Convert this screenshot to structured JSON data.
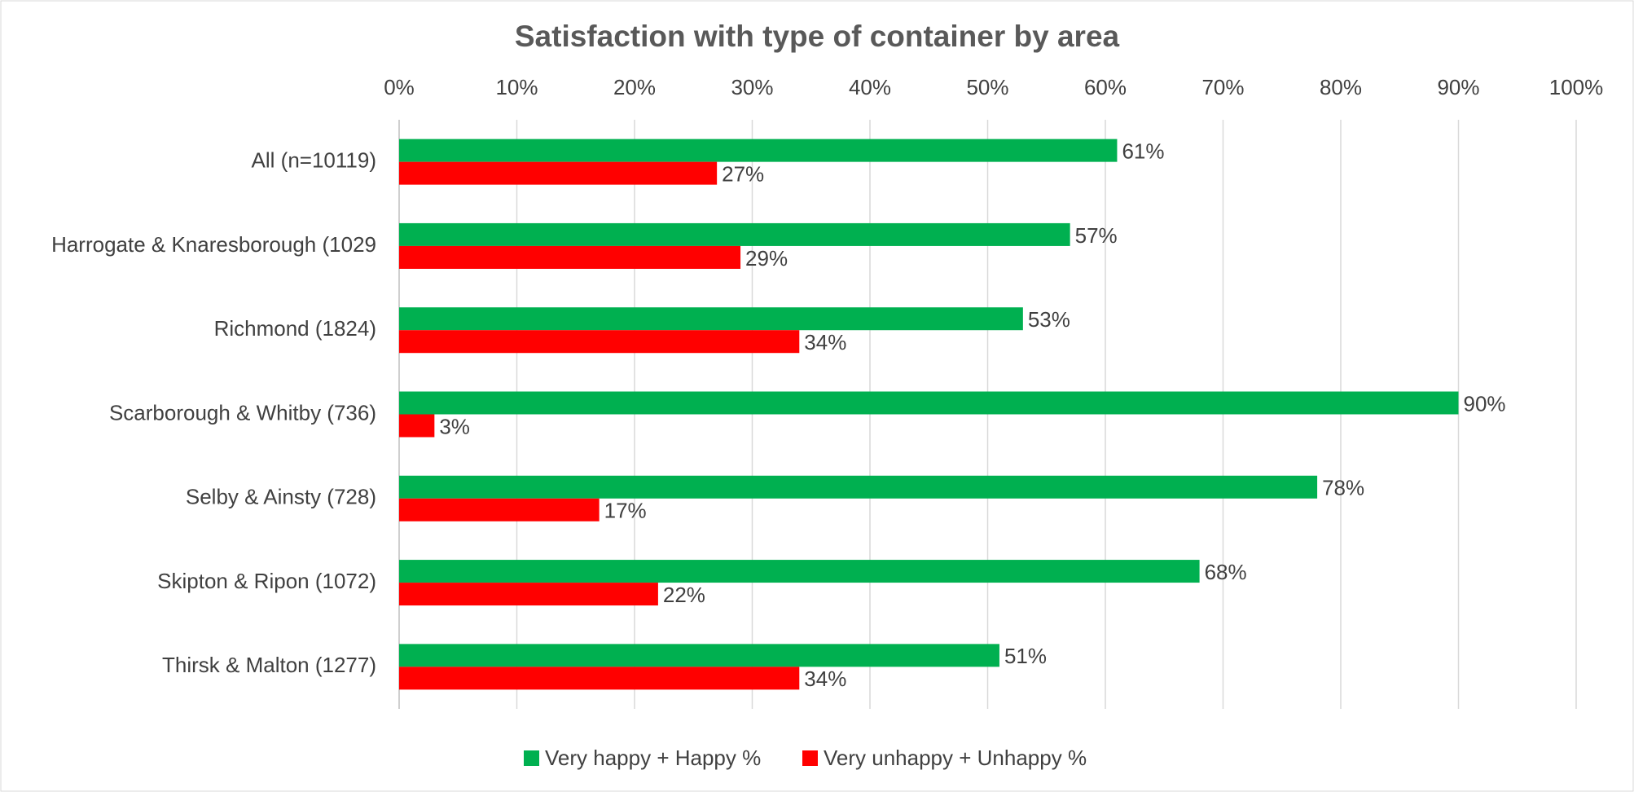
{
  "chart_data": {
    "type": "hbar",
    "title": "Satisfaction with type of container by area",
    "categories": [
      "All (n=10119)",
      "Harrogate & Knaresborough (1029",
      "Richmond (1824)",
      "Scarborough & Whitby (736)",
      "Selby & Ainsty (728)",
      "Skipton & Ripon (1072)",
      "Thirsk & Malton (1277)"
    ],
    "series": [
      {
        "name": "Very happy + Happy %",
        "color": "#00b050",
        "values": [
          61,
          57,
          53,
          90,
          78,
          68,
          51
        ],
        "value_labels": [
          "61%",
          "57%",
          "53%",
          "90%",
          "78%",
          "68%",
          "51%"
        ]
      },
      {
        "name": "Very unhappy + Unhappy %",
        "color": "#ff0000",
        "values": [
          27,
          29,
          34,
          3,
          17,
          22,
          34
        ],
        "value_labels": [
          "27%",
          "29%",
          "34%",
          "3%",
          "17%",
          "22%",
          "34%"
        ]
      }
    ],
    "xlim": [
      0,
      100
    ],
    "xticks": [
      {
        "value": 0,
        "label": "0%"
      },
      {
        "value": 10,
        "label": "10%"
      },
      {
        "value": 20,
        "label": "20%"
      },
      {
        "value": 30,
        "label": "30%"
      },
      {
        "value": 40,
        "label": "40%"
      },
      {
        "value": 50,
        "label": "50%"
      },
      {
        "value": 60,
        "label": "60%"
      },
      {
        "value": 70,
        "label": "70%"
      },
      {
        "value": 80,
        "label": "80%"
      },
      {
        "value": 90,
        "label": "90%"
      },
      {
        "value": 100,
        "label": "100%"
      }
    ],
    "grid": true,
    "legend": "bottom"
  }
}
